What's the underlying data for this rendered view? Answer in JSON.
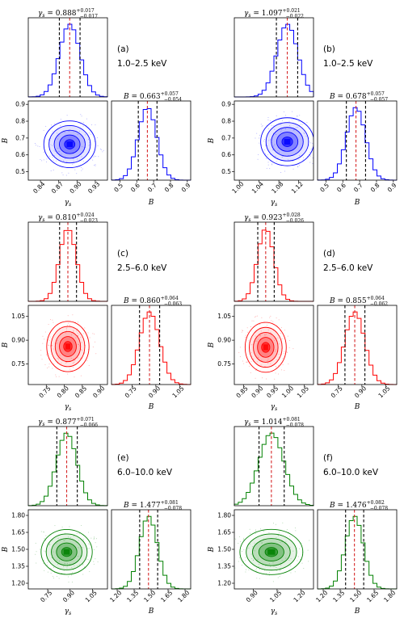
{
  "chart_data": [
    {
      "type": "corner",
      "panel": "(a)",
      "band": "1.0–2.5 keV",
      "color": "#0000ff",
      "gamma": {
        "label": "γ_s",
        "value": 0.888,
        "plus": 0.017,
        "minus": 0.017,
        "xlim": [
          0.82,
          0.95
        ],
        "ticks": [
          "0.84",
          "0.87",
          "0.90",
          "0.93"
        ]
      },
      "B": {
        "label": "B",
        "value": 0.663,
        "plus": 0.057,
        "minus": 0.054,
        "xlim": [
          0.45,
          0.92
        ],
        "ticks": [
          "0.5",
          "0.6",
          "0.7",
          "0.8",
          "0.9"
        ]
      },
      "yticks": [
        "0.9",
        "0.8",
        "0.7",
        "0.6",
        "0.5"
      ]
    },
    {
      "type": "corner",
      "panel": "(b)",
      "band": "1.0–2.5 keV",
      "color": "#0000ff",
      "gamma": {
        "label": "γ_s",
        "value": 1.097,
        "plus": 0.021,
        "minus": 0.022,
        "xlim": [
          0.99,
          1.15
        ],
        "ticks": [
          "1.00",
          "1.04",
          "1.08",
          "1.12"
        ]
      },
      "B": {
        "label": "B",
        "value": 0.678,
        "plus": 0.057,
        "minus": 0.057,
        "xlim": [
          0.45,
          0.92
        ],
        "ticks": [
          "0.5",
          "0.6",
          "0.7",
          "0.8",
          "0.9"
        ]
      },
      "yticks": [
        "0.9",
        "0.8",
        "0.7",
        "0.6",
        "0.5"
      ]
    },
    {
      "type": "corner",
      "panel": "(c)",
      "band": "2.5–6.0 keV",
      "color": "#ff0000",
      "gamma": {
        "label": "γ_s",
        "value": 0.81,
        "plus": 0.024,
        "minus": 0.023,
        "xlim": [
          0.7,
          0.92
        ],
        "ticks": [
          "0.75",
          "0.80",
          "0.85",
          "0.90"
        ]
      },
      "B": {
        "label": "B",
        "value": 0.86,
        "plus": 0.064,
        "minus": 0.063,
        "xlim": [
          0.62,
          1.12
        ],
        "ticks": [
          "0.75",
          "0.90",
          "1.05"
        ]
      },
      "yticks": [
        "1.05",
        "0.90",
        "0.75"
      ]
    },
    {
      "type": "corner",
      "panel": "(d)",
      "band": "2.5–6.0 keV",
      "color": "#ff0000",
      "gamma": {
        "label": "γ_s",
        "value": 0.923,
        "plus": 0.028,
        "minus": 0.026,
        "xlim": [
          0.82,
          1.08
        ],
        "ticks": [
          "0.85",
          "0.90",
          "0.95",
          "1.00",
          "1.05"
        ]
      },
      "B": {
        "label": "B",
        "value": 0.855,
        "plus": 0.064,
        "minus": 0.062,
        "xlim": [
          0.62,
          1.12
        ],
        "ticks": [
          "0.75",
          "0.90",
          "1.05"
        ]
      },
      "yticks": [
        "1.05",
        "0.90",
        "0.75"
      ]
    },
    {
      "type": "corner",
      "panel": "(e)",
      "band": "6.0–10.0 keV",
      "color": "#008000",
      "gamma": {
        "label": "γ_s",
        "value": 0.877,
        "plus": 0.071,
        "minus": 0.066,
        "xlim": [
          0.62,
          1.15
        ],
        "ticks": [
          "0.75",
          "0.90",
          "1.05"
        ]
      },
      "B": {
        "label": "B",
        "value": 1.477,
        "plus": 0.081,
        "minus": 0.078,
        "xlim": [
          1.15,
          1.85
        ],
        "ticks": [
          "1.20",
          "1.35",
          "1.50",
          "1.65",
          "1.80"
        ]
      },
      "yticks": [
        "1.80",
        "1.65",
        "1.50",
        "1.35",
        "1.20"
      ]
    },
    {
      "type": "corner",
      "panel": "(f)",
      "band": "6.0–10.0 keV",
      "color": "#008000",
      "gamma": {
        "label": "γ_s",
        "value": 1.014,
        "plus": 0.081,
        "minus": 0.078,
        "xlim": [
          0.78,
          1.28
        ],
        "ticks": [
          "0.90",
          "1.05",
          "1.20",
          "1.35"
        ]
      },
      "B": {
        "label": "B",
        "value": 1.476,
        "plus": 0.082,
        "minus": 0.078,
        "xlim": [
          1.15,
          1.85
        ],
        "ticks": [
          "1.20",
          "1.35",
          "1.50",
          "1.65",
          "1.80"
        ]
      },
      "yticks": [
        "1.80",
        "1.65",
        "1.50",
        "1.35",
        "1.20"
      ]
    }
  ]
}
